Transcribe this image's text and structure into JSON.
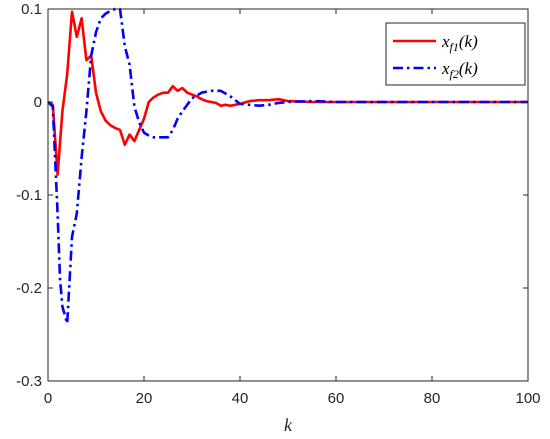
{
  "chart_data": {
    "type": "line",
    "title": "",
    "xlabel": "k",
    "ylabel": "",
    "xlim": [
      0,
      100
    ],
    "ylim": [
      -0.3,
      0.1
    ],
    "xticks": [
      0,
      20,
      40,
      60,
      80,
      100
    ],
    "xtick_labels": [
      "0",
      "20",
      "40",
      "60",
      "80",
      "100"
    ],
    "yticks": [
      0.1,
      0,
      -0.1,
      -0.2,
      -0.3
    ],
    "ytick_labels": [
      "0.1",
      "0",
      "-0.1",
      "-0.2",
      "-0.3"
    ],
    "grid": false,
    "legend_position": "top-right",
    "series": [
      {
        "name": "x_{f1}(k)",
        "legend_main": "x",
        "legend_sub": "f1",
        "legend_tail": "(k)",
        "color": "#ff0000",
        "style": "solid",
        "x": [
          0,
          1,
          2,
          3,
          4,
          5,
          6,
          7,
          8,
          9,
          10,
          11,
          12,
          13,
          14,
          15,
          16,
          17,
          18,
          19,
          20,
          21,
          22,
          23,
          24,
          25,
          26,
          27,
          28,
          29,
          30,
          31,
          32,
          33,
          34,
          35,
          36,
          37,
          38,
          39,
          40,
          42,
          44,
          46,
          48,
          50,
          55,
          60,
          70,
          80,
          90,
          100
        ],
        "y": [
          0,
          -0.003,
          -0.078,
          -0.01,
          0.03,
          0.097,
          0.07,
          0.09,
          0.045,
          0.05,
          0.01,
          -0.01,
          -0.02,
          -0.025,
          -0.028,
          -0.03,
          -0.046,
          -0.035,
          -0.042,
          -0.03,
          -0.018,
          0,
          0.005,
          0.008,
          0.01,
          0.01,
          0.017,
          0.012,
          0.015,
          0.01,
          0.008,
          0.006,
          0.003,
          0.001,
          0,
          -0.001,
          -0.004,
          -0.003,
          -0.004,
          -0.003,
          -0.002,
          0.001,
          0.002,
          0.002,
          0.003,
          0.001,
          0,
          0,
          0,
          0,
          0,
          0
        ]
      },
      {
        "name": "x_{f2}(k)",
        "legend_main": "x",
        "legend_sub": "f2",
        "legend_tail": "(k)",
        "color": "#0000ff",
        "style": "dashdot",
        "x": [
          0,
          1,
          2,
          2.5,
          3,
          4,
          5,
          6,
          7,
          8,
          9,
          10,
          11,
          12,
          13,
          14,
          15,
          16,
          17,
          18,
          19,
          20,
          21,
          22,
          23,
          24,
          25,
          26,
          27,
          28,
          29,
          30,
          32,
          34,
          36,
          38,
          40,
          42,
          44,
          46,
          48,
          50,
          55,
          60,
          70,
          80,
          90,
          100
        ],
        "y": [
          0,
          -0.005,
          -0.12,
          -0.19,
          -0.22,
          -0.238,
          -0.145,
          -0.12,
          -0.06,
          -0.01,
          0.05,
          0.075,
          0.09,
          0.095,
          0.098,
          0.1,
          0.1,
          0.06,
          0.04,
          -0.005,
          -0.022,
          -0.033,
          -0.036,
          -0.038,
          -0.038,
          -0.038,
          -0.038,
          -0.03,
          -0.018,
          -0.01,
          -0.003,
          0.004,
          0.01,
          0.012,
          0.012,
          0.006,
          -0.002,
          -0.003,
          -0.004,
          -0.003,
          -0.001,
          0,
          0.001,
          0,
          0,
          0,
          0,
          0
        ]
      }
    ]
  }
}
